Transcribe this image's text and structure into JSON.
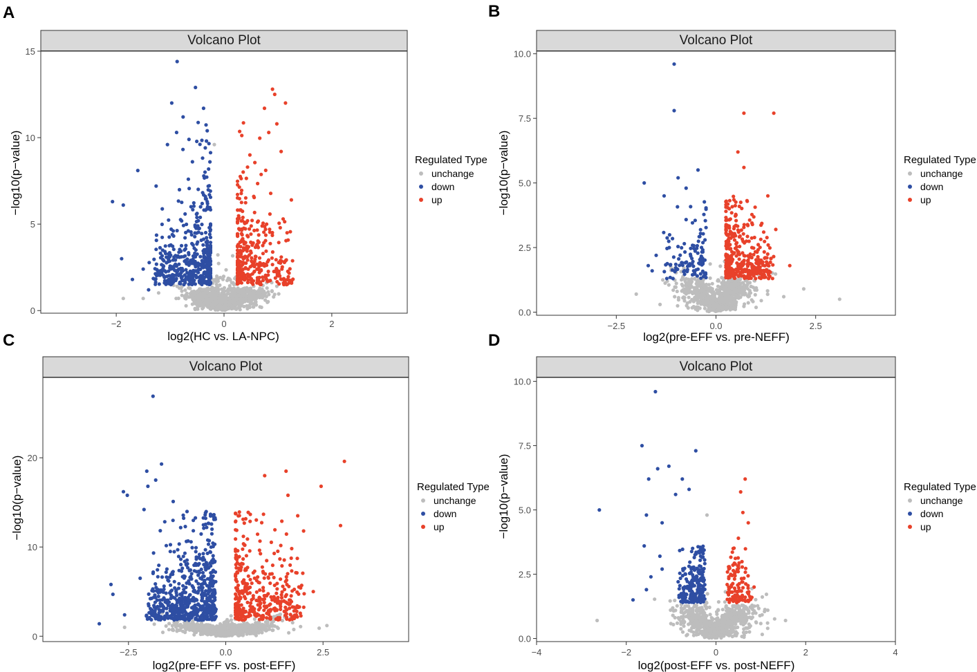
{
  "colors": {
    "unchange": "#bdbdbd",
    "down": "#2e4ea3",
    "up": "#e8412a",
    "strip": "#d9d9d9"
  },
  "chart_data": [
    {
      "panel": "A",
      "type": "scatter",
      "title": "Volcano Plot",
      "xlabel": "log2(HC vs. LA-NPC)",
      "ylabel": "−log10(p−value)",
      "xlim": [
        -3.4,
        3.4
      ],
      "ylim": [
        -0.15,
        15.0
      ],
      "xticks": [
        -2,
        0,
        2
      ],
      "xtick_labels": [
        "−2",
        "0",
        "2"
      ],
      "yticks": [
        0,
        5,
        10,
        15
      ],
      "ytick_labels": [
        "0",
        "5",
        "10",
        "15"
      ],
      "legend": {
        "title": "Regulated Type",
        "entries": [
          "unchange",
          "down",
          "up"
        ],
        "position": "right"
      },
      "threshold": {
        "fc": 0.25,
        "p": 1.3
      },
      "generator": {
        "seed": 11,
        "n_unchange": 900,
        "n_down": 480,
        "n_up": 340,
        "down_x": [
          -1.3,
          -0.25
        ],
        "up_x": [
          0.25,
          1.25
        ],
        "y_base": 1.5,
        "y_scale": 1.6,
        "y_max": 11.0,
        "un_x_sd": 0.35,
        "un_y_scale": 1.2
      },
      "points": {
        "down": [
          [
            -0.87,
            14.4
          ],
          [
            -0.53,
            12.9
          ],
          [
            -0.97,
            12.0
          ],
          [
            -0.38,
            11.7
          ],
          [
            -0.76,
            11.2
          ],
          [
            -2.07,
            6.3
          ],
          [
            -1.87,
            6.1
          ],
          [
            -1.9,
            3.0
          ],
          [
            -1.5,
            2.4
          ],
          [
            -1.7,
            1.8
          ],
          [
            -1.4,
            1.2
          ],
          [
            -1.26,
            7.2
          ],
          [
            -1.6,
            8.1
          ],
          [
            -1.05,
            9.6
          ],
          [
            -0.88,
            10.3
          ],
          [
            -0.65,
            9.9
          ]
        ],
        "up": [
          [
            0.9,
            12.8
          ],
          [
            0.94,
            12.5
          ],
          [
            1.14,
            12.0
          ],
          [
            0.75,
            11.7
          ],
          [
            0.98,
            10.8
          ],
          [
            1.25,
            6.4
          ],
          [
            1.17,
            4.5
          ],
          [
            1.16,
            1.5
          ],
          [
            0.83,
            10.3
          ],
          [
            1.06,
            9.2
          ],
          [
            0.48,
            9.0
          ]
        ],
        "unchange": [
          [
            -1.87,
            0.7
          ],
          [
            -1.5,
            0.7
          ],
          [
            -0.18,
            9.6
          ]
        ]
      }
    },
    {
      "panel": "B",
      "type": "scatter",
      "title": "Volcano Plot",
      "xlabel": "log2(pre-EFF vs. pre-NEFF)",
      "ylabel": "−log10(p−value)",
      "xlim": [
        -4.5,
        4.5
      ],
      "ylim": [
        -0.12,
        10.1
      ],
      "xticks": [
        -2.5,
        0.0,
        2.5
      ],
      "xtick_labels": [
        "−2.5",
        "0.0",
        "2.5"
      ],
      "yticks": [
        0,
        2.5,
        5,
        7.5,
        10
      ],
      "ytick_labels": [
        "0.0",
        "2.5",
        "5.0",
        "7.5",
        "10.0"
      ],
      "legend": {
        "title": "Regulated Type",
        "entries": [
          "unchange",
          "down",
          "up"
        ],
        "position": "right"
      },
      "threshold": {
        "fc": 0.25,
        "p": 1.3
      },
      "generator": {
        "seed": 22,
        "n_unchange": 850,
        "n_down": 110,
        "n_up": 360,
        "down_x": [
          -1.3,
          -0.3
        ],
        "up_x": [
          0.25,
          1.4
        ],
        "y_base": 1.3,
        "y_scale": 0.9,
        "y_max": 4.5,
        "un_x_sd": 0.45,
        "un_y_scale": 0.7
      },
      "points": {
        "down": [
          [
            -1.05,
            9.6
          ],
          [
            -1.05,
            7.8
          ],
          [
            -1.8,
            5.0
          ],
          [
            -1.3,
            4.5
          ],
          [
            -0.95,
            5.2
          ],
          [
            -0.75,
            4.8
          ],
          [
            -0.45,
            5.5
          ],
          [
            -1.5,
            2.2
          ],
          [
            -1.6,
            1.6
          ],
          [
            -1.7,
            1.8
          ]
        ],
        "up": [
          [
            0.7,
            7.7
          ],
          [
            1.45,
            7.7
          ],
          [
            0.55,
            6.2
          ],
          [
            0.7,
            5.6
          ],
          [
            1.3,
            4.5
          ],
          [
            1.85,
            1.8
          ],
          [
            1.5,
            3.2
          ]
        ],
        "unchange": [
          [
            3.1,
            0.5
          ],
          [
            2.2,
            0.9
          ],
          [
            1.7,
            0.6
          ],
          [
            -2.0,
            0.7
          ]
        ]
      }
    },
    {
      "panel": "C",
      "type": "scatter",
      "title": "Volcano Plot",
      "xlabel": "log2(pre-EFF vs. post-EFF)",
      "ylabel": "−log10(p−value)",
      "xlim": [
        -4.7,
        4.7
      ],
      "ylim": [
        -0.6,
        29.0
      ],
      "xticks": [
        -2.5,
        0.0,
        2.5
      ],
      "xtick_labels": [
        "−2.5",
        "0.0",
        "2.5"
      ],
      "yticks": [
        0,
        10,
        20
      ],
      "ytick_labels": [
        "0",
        "10",
        "20"
      ],
      "legend": {
        "title": "Regulated Type",
        "entries": [
          "unchange",
          "down",
          "up"
        ],
        "position": "right"
      },
      "threshold": {
        "fc": 0.25,
        "p": 1.3
      },
      "generator": {
        "seed": 33,
        "n_unchange": 850,
        "n_down": 620,
        "n_up": 380,
        "down_x": [
          -2.0,
          -0.3
        ],
        "up_x": [
          0.25,
          2.0
        ],
        "y_base": 1.8,
        "y_scale": 3.0,
        "y_max": 14.0,
        "un_x_sd": 0.6,
        "un_y_scale": 1.0
      },
      "points": {
        "down": [
          [
            -1.87,
            26.9
          ],
          [
            -1.65,
            19.3
          ],
          [
            -2.03,
            18.5
          ],
          [
            -1.8,
            17.5
          ],
          [
            -2.0,
            16.8
          ],
          [
            -2.63,
            16.2
          ],
          [
            -2.53,
            15.8
          ],
          [
            -1.35,
            15.1
          ],
          [
            -2.1,
            14.2
          ],
          [
            -2.95,
            5.8
          ],
          [
            -2.9,
            4.7
          ],
          [
            -3.25,
            1.4
          ],
          [
            -2.6,
            2.4
          ],
          [
            -2.2,
            6.5
          ]
        ],
        "up": [
          [
            3.05,
            19.6
          ],
          [
            1.55,
            18.5
          ],
          [
            1.0,
            18.0
          ],
          [
            2.45,
            16.8
          ],
          [
            1.6,
            15.8
          ],
          [
            2.95,
            12.4
          ],
          [
            2.0,
            11.8
          ],
          [
            2.25,
            5.0
          ],
          [
            1.85,
            13.5
          ]
        ],
        "unchange": [
          [
            2.6,
            1.2
          ],
          [
            2.4,
            0.9
          ],
          [
            -2.6,
            1.0
          ]
        ]
      }
    },
    {
      "panel": "D",
      "type": "scatter",
      "title": "Volcano Plot",
      "xlabel": "log2(post-EFF vs. post-NEFF)",
      "ylabel": "−log10(p−value)",
      "xlim": [
        -4.0,
        4.0
      ],
      "ylim": [
        -0.12,
        10.15
      ],
      "xticks": [
        -4,
        -2,
        0,
        2,
        4
      ],
      "xtick_labels": [
        "−4",
        "−2",
        "0",
        "2",
        "4"
      ],
      "yticks": [
        0,
        2.5,
        5,
        7.5,
        10
      ],
      "ytick_labels": [
        "0.0",
        "2.5",
        "5.0",
        "7.5",
        "10.0"
      ],
      "legend": {
        "title": "Regulated Type",
        "entries": [
          "unchange",
          "down",
          "up"
        ],
        "position": "right"
      },
      "threshold": {
        "fc": 0.25,
        "p": 1.3
      },
      "generator": {
        "seed": 44,
        "n_unchange": 900,
        "n_down": 210,
        "n_up": 110,
        "down_x": [
          -0.8,
          -0.3
        ],
        "up_x": [
          0.3,
          0.75
        ],
        "y_base": 1.4,
        "y_scale": 0.8,
        "y_max": 3.6,
        "un_x_sd": 0.4,
        "un_y_scale": 0.6
      },
      "points": {
        "down": [
          [
            -1.35,
            9.6
          ],
          [
            -0.45,
            7.3
          ],
          [
            -1.65,
            7.5
          ],
          [
            -1.3,
            6.6
          ],
          [
            -1.05,
            6.7
          ],
          [
            -1.5,
            6.2
          ],
          [
            -0.75,
            6.2
          ],
          [
            -2.6,
            5.0
          ],
          [
            -1.55,
            4.8
          ],
          [
            -1.2,
            4.5
          ],
          [
            -0.6,
            5.8
          ],
          [
            -0.9,
            5.6
          ],
          [
            -1.85,
            1.5
          ],
          [
            -1.6,
            3.6
          ],
          [
            -1.45,
            2.4
          ],
          [
            -1.25,
            3.2
          ],
          [
            -1.55,
            1.9
          ],
          [
            -1.2,
            2.7
          ]
        ],
        "up": [
          [
            0.65,
            6.2
          ],
          [
            0.55,
            5.7
          ],
          [
            0.6,
            4.9
          ],
          [
            0.72,
            4.5
          ],
          [
            0.5,
            3.9
          ],
          [
            0.85,
            2.0
          ],
          [
            0.8,
            1.6
          ]
        ],
        "unchange": [
          [
            -2.65,
            0.7
          ],
          [
            -0.2,
            4.8
          ],
          [
            1.55,
            0.7
          ],
          [
            1.15,
            0.6
          ]
        ]
      }
    }
  ]
}
